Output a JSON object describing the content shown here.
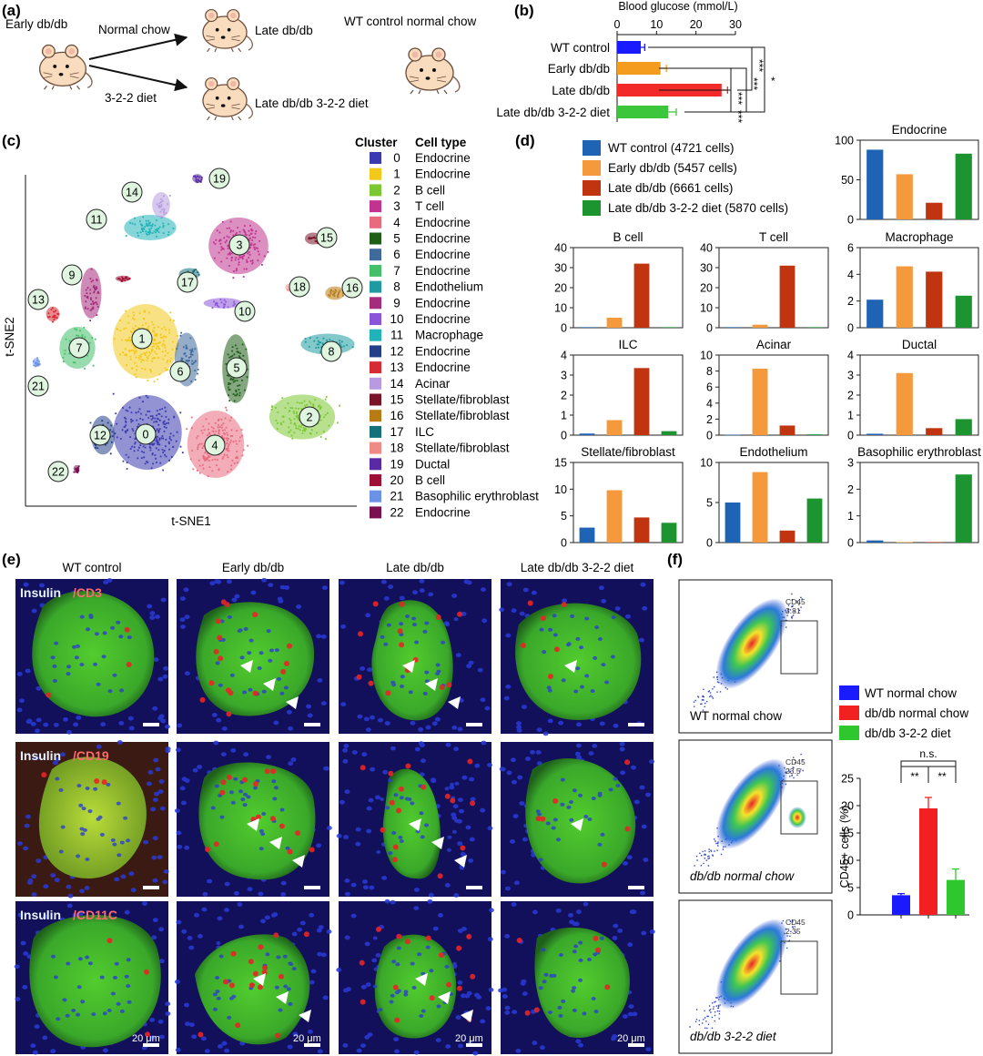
{
  "panel_labels": {
    "a": "(a)",
    "b": "(b)",
    "c": "(c)",
    "d": "(d)",
    "e": "(e)",
    "f": "(f)"
  },
  "panel_a": {
    "early": "Early db/db",
    "normal_chow": "Normal chow",
    "late": "Late db/db",
    "diet": "3-2-2 diet",
    "late_diet": "Late db/db 3-2-2 diet",
    "wt": "WT control normal chow"
  },
  "panel_c": {
    "xlabel": "t-SNE1",
    "ylabel": "t-SNE2",
    "legend_header_cluster": "Cluster",
    "legend_header_type": "Cell type",
    "clusters": [
      {
        "id": "0",
        "type": "Endocrine",
        "color": "#3b3bb0"
      },
      {
        "id": "1",
        "type": "Endocrine",
        "color": "#f2c81b"
      },
      {
        "id": "2",
        "type": "B cell",
        "color": "#7cc832"
      },
      {
        "id": "3",
        "type": "T cell",
        "color": "#c0338e"
      },
      {
        "id": "4",
        "type": "Endocrine",
        "color": "#e86a7e"
      },
      {
        "id": "5",
        "type": "Endocrine",
        "color": "#1f5e17"
      },
      {
        "id": "6",
        "type": "Endocrine",
        "color": "#3f6a9c"
      },
      {
        "id": "7",
        "type": "Endocrine",
        "color": "#44c06a"
      },
      {
        "id": "8",
        "type": "Endothelium",
        "color": "#1e9aa0"
      },
      {
        "id": "9",
        "type": "Endocrine",
        "color": "#a52c7c"
      },
      {
        "id": "10",
        "type": "Endocrine",
        "color": "#8a55d8"
      },
      {
        "id": "11",
        "type": "Macrophage",
        "color": "#22b3b8"
      },
      {
        "id": "12",
        "type": "Endocrine",
        "color": "#233f8a"
      },
      {
        "id": "13",
        "type": "Endocrine",
        "color": "#d62a35"
      },
      {
        "id": "14",
        "type": "Acinar",
        "color": "#b79ae0"
      },
      {
        "id": "15",
        "type": "Stellate/fibroblast",
        "color": "#7a1428"
      },
      {
        "id": "16",
        "type": "Stellate/fibroblast",
        "color": "#b87a12"
      },
      {
        "id": "17",
        "type": "ILC",
        "color": "#16707a"
      },
      {
        "id": "18",
        "type": "Stellate/fibroblast",
        "color": "#f08a86"
      },
      {
        "id": "19",
        "type": "Ductal",
        "color": "#5a2aa6"
      },
      {
        "id": "20",
        "type": "B cell",
        "color": "#9e1035"
      },
      {
        "id": "21",
        "type": "Basophilic erythroblast",
        "color": "#6c92e8"
      },
      {
        "id": "22",
        "type": "Endocrine",
        "color": "#7a0f52"
      }
    ]
  },
  "chart_data": [
    {
      "type": "bar",
      "panel": "b",
      "orientation": "horizontal",
      "title": "Blood glucose (mmol/L)",
      "categories": [
        "WT control",
        "Early db/db",
        "Late db/db",
        "Late db/db 3-2-2 diet"
      ],
      "values": [
        6,
        11,
        26.5,
        13
      ],
      "errors": [
        1,
        1.5,
        1.5,
        2
      ],
      "colors": [
        "#1a1aff",
        "#f39c1d",
        "#f22a2a",
        "#3cc63c"
      ],
      "xlim": [
        0,
        30
      ],
      "xticks": [
        "0",
        "10",
        "20",
        "30"
      ],
      "significance": [
        "***",
        "***",
        "***",
        "***",
        "*"
      ]
    },
    {
      "type": "bar",
      "panel": "d",
      "legend": [
        {
          "name": "WT control (4721 cells)",
          "color": "#1f63b4"
        },
        {
          "name": "Early db/db (5457 cells)",
          "color": "#f49a3c"
        },
        {
          "name": "Late db/db (6661 cells)",
          "color": "#c0340f"
        },
        {
          "name": "Late db/db 3-2-2 diet (5870 cells)",
          "color": "#1c9430"
        }
      ],
      "subplots": [
        {
          "title": "Endocrine",
          "ylim": [
            0,
            100
          ],
          "yticks": [
            "0",
            "50",
            "100"
          ],
          "values": [
            88,
            57,
            21,
            83
          ]
        },
        {
          "title": "B cell",
          "ylim": [
            0,
            40
          ],
          "yticks": [
            "0",
            "10",
            "20",
            "30",
            "40"
          ],
          "values": [
            0.3,
            5,
            32,
            0.3
          ]
        },
        {
          "title": "T cell",
          "ylim": [
            0,
            40
          ],
          "yticks": [
            "0",
            "10",
            "20",
            "30",
            "40"
          ],
          "values": [
            0.3,
            1.5,
            31,
            0.3
          ]
        },
        {
          "title": "Macrophage",
          "ylim": [
            0,
            6
          ],
          "yticks": [
            "0",
            "2",
            "4",
            "6"
          ],
          "values": [
            2.1,
            4.6,
            4.2,
            2.4
          ]
        },
        {
          "title": "ILC",
          "ylim": [
            0,
            4
          ],
          "yticks": [
            "0",
            "1",
            "2",
            "3",
            "4"
          ],
          "values": [
            0.08,
            0.75,
            3.35,
            0.2
          ]
        },
        {
          "title": "Acinar",
          "ylim": [
            0,
            10
          ],
          "yticks": [
            "0",
            "2",
            "4",
            "6",
            "8",
            "10"
          ],
          "values": [
            0.05,
            8.3,
            1.2,
            0.1
          ]
        },
        {
          "title": "Ductal",
          "ylim": [
            0,
            4
          ],
          "yticks": [
            "0",
            "1",
            "2",
            "3",
            "4"
          ],
          "values": [
            0.07,
            3.1,
            0.35,
            0.8
          ]
        },
        {
          "title": "Stellate/fibroblast",
          "ylim": [
            0,
            15
          ],
          "yticks": [
            "0",
            "5",
            "10",
            "15"
          ],
          "values": [
            2.8,
            9.8,
            4.7,
            3.7
          ]
        },
        {
          "title": "Endothelium",
          "ylim": [
            0,
            10
          ],
          "yticks": [
            "0",
            "5",
            "10"
          ],
          "values": [
            5,
            8.8,
            1.5,
            5.5
          ]
        },
        {
          "title": "Basophilic erythroblast",
          "ylim": [
            0,
            3
          ],
          "yticks": [
            "0",
            "1",
            "2",
            "3"
          ],
          "values": [
            0.08,
            0.02,
            0.02,
            2.55
          ]
        }
      ]
    },
    {
      "type": "bar",
      "panel": "f",
      "ylabel": "CD45+ cells (%)",
      "categories": [
        "WT normal chow",
        "db/db normal chow",
        "db/db 3-2-2 diet"
      ],
      "values": [
        3.6,
        19.5,
        6.4
      ],
      "errors": [
        0.3,
        2,
        2
      ],
      "colors": [
        "#1a1aff",
        "#f22020",
        "#2ec82e"
      ],
      "ylim": [
        0,
        25
      ],
      "yticks": [
        "0",
        "5",
        "10",
        "15",
        "20",
        "25"
      ],
      "significance": [
        "**",
        "**",
        "n.s."
      ]
    }
  ],
  "panel_e": {
    "columns": [
      "WT control",
      "Early db/db",
      "Late db/db",
      "Late db/db 3-2-2 diet"
    ],
    "row_labels": [
      {
        "a": "Insulin",
        "b": "/CD3"
      },
      {
        "a": "Insulin",
        "b": "/CD19"
      },
      {
        "a": "Insulin",
        "b": "/CD11C"
      }
    ],
    "scale": "20 μm"
  },
  "panel_f": {
    "gate": "CD45",
    "gate_values": [
      "3.81",
      "23.5",
      "2.35"
    ],
    "plot_labels": [
      "WT normal chow",
      "db/db normal chow",
      "db/db 3-2-2 diet"
    ]
  }
}
